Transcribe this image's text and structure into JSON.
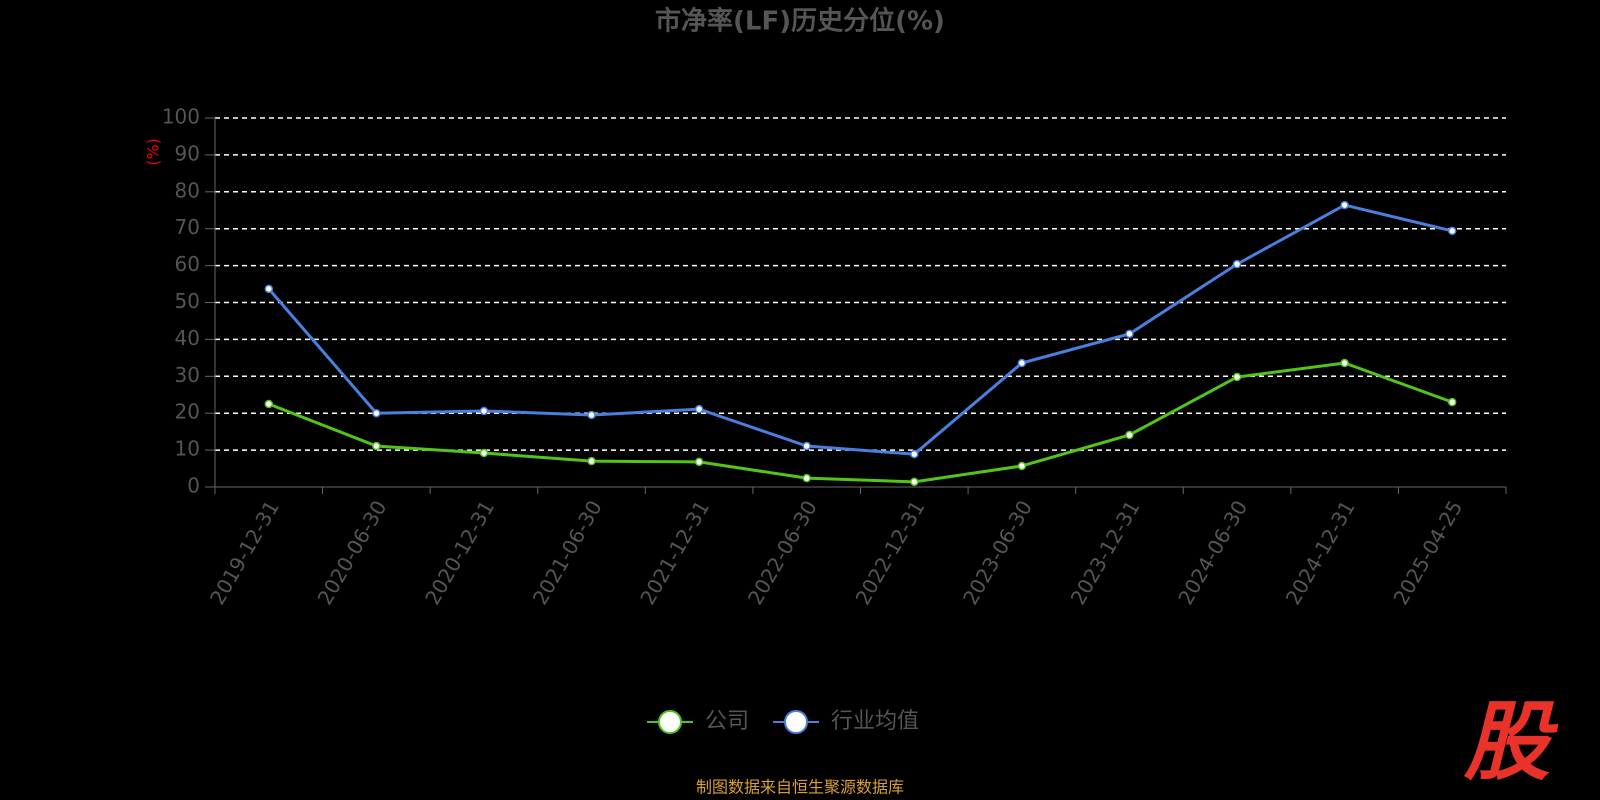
{
  "chart_data": {
    "type": "line",
    "title": "市净率(LF)历史分位(%)",
    "y_label": "(%)",
    "categories": [
      "2019-12-31",
      "2020-06-30",
      "2020-12-31",
      "2021-06-30",
      "2021-12-31",
      "2022-06-30",
      "2022-12-31",
      "2023-06-30",
      "2023-12-31",
      "2024-06-30",
      "2024-12-31",
      "2025-04-25"
    ],
    "series": [
      {
        "name": "公司",
        "color": "#52c41a",
        "values": [
          22.5,
          11.1,
          9.2,
          7.0,
          6.8,
          2.4,
          1.4,
          5.7,
          14.1,
          29.8,
          33.6,
          23.0
        ]
      },
      {
        "name": "行业均值",
        "color": "#4a7fe0",
        "values": [
          53.7,
          20.0,
          20.6,
          19.5,
          21.1,
          11.1,
          8.9,
          33.6,
          41.5,
          60.4,
          76.4,
          69.4
        ]
      }
    ],
    "ylim": [
      0,
      100
    ],
    "yticks": [
      0,
      10,
      20,
      30,
      40,
      50,
      60,
      70,
      80,
      90,
      100
    ],
    "grid": true,
    "legend": "bottom",
    "source": "制图数据来自恒生聚源数据库",
    "watermark": "股"
  }
}
